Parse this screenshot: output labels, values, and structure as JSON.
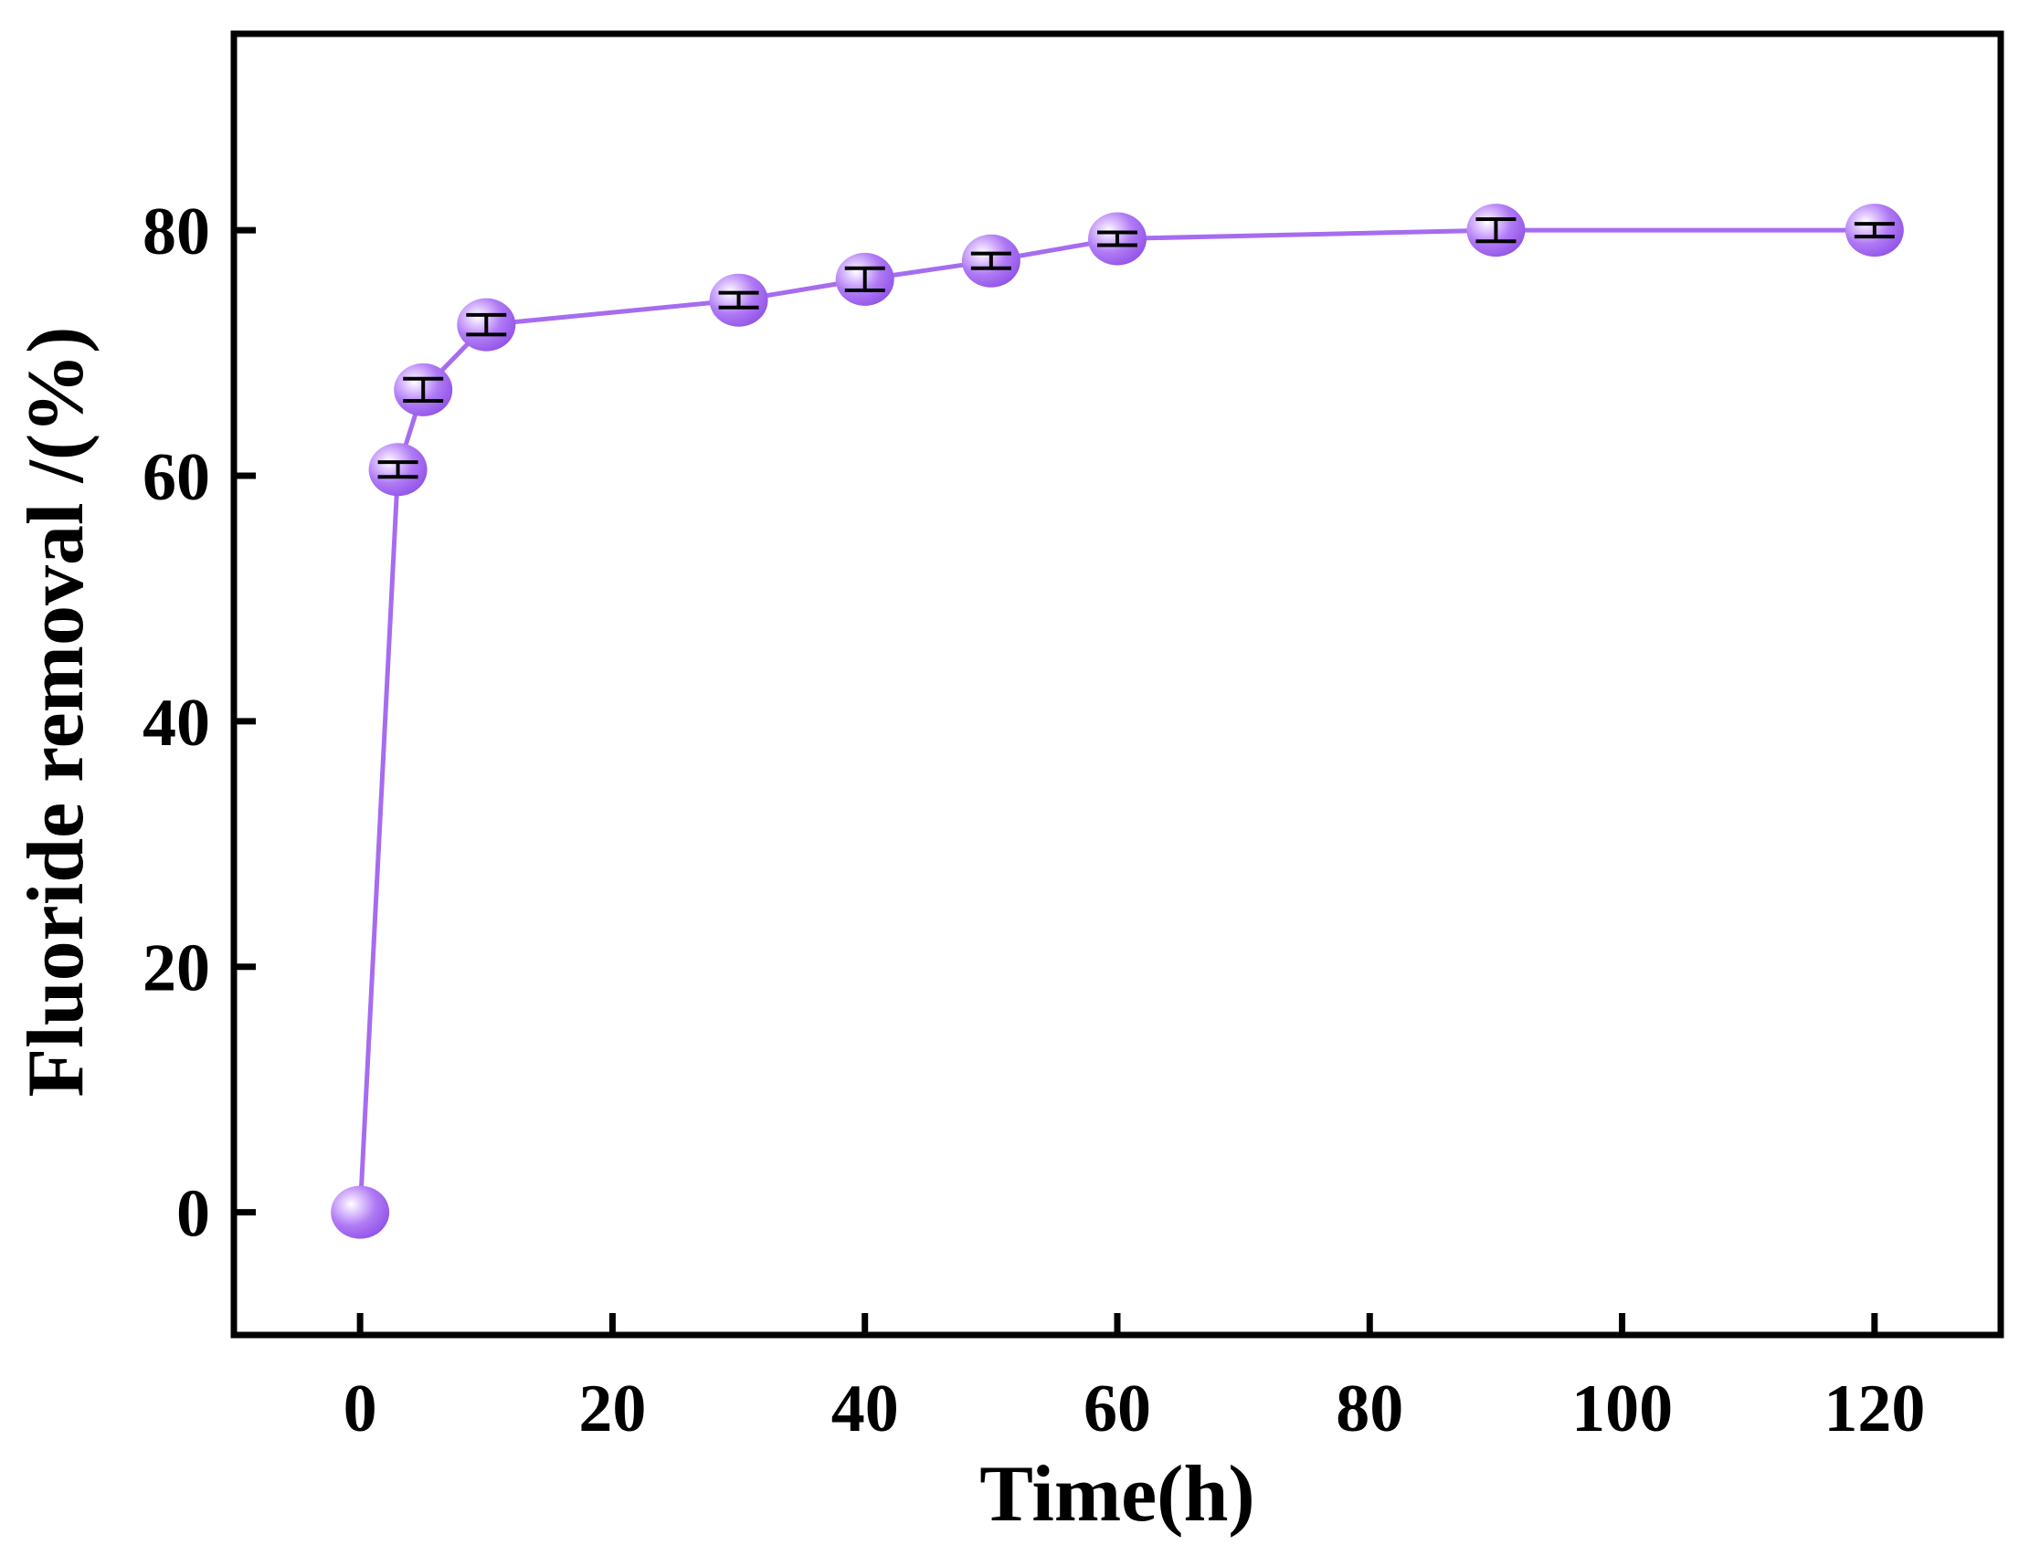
{
  "chart_data": {
    "type": "line",
    "title": "",
    "xlabel": "Time(h)",
    "ylabel": "Fluoride removal /(%)",
    "xlim": [
      -10,
      130
    ],
    "ylim": [
      -10,
      96
    ],
    "xticks": [
      0,
      20,
      40,
      60,
      80,
      100,
      120
    ],
    "yticks": [
      0,
      20,
      40,
      60,
      80
    ],
    "grid": false,
    "series": [
      {
        "name": "Fluoride removal",
        "color": "#a66cf0",
        "x": [
          0,
          3,
          5,
          10,
          30,
          40,
          50,
          60,
          90,
          120
        ],
        "y": [
          0,
          60.5,
          67.0,
          72.3,
          74.3,
          76.0,
          77.5,
          79.3,
          80.0,
          80.0
        ],
        "error": [
          0,
          0.6,
          0.9,
          0.8,
          0.6,
          0.9,
          0.6,
          0.5,
          0.9,
          0.5
        ]
      }
    ]
  }
}
